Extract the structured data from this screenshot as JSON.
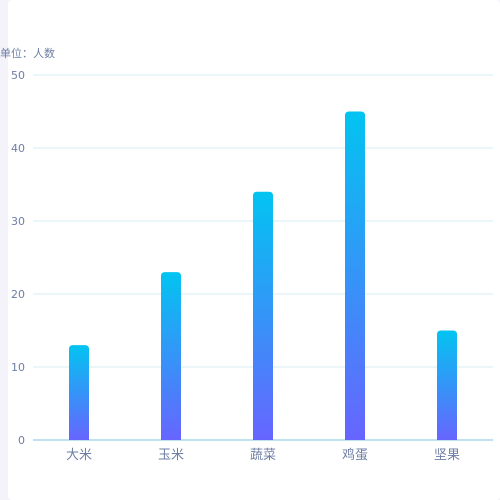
{
  "chart_data": {
    "type": "bar",
    "unit_label": "单位：人数",
    "categories": [
      "大米",
      "玉米",
      "蔬菜",
      "鸡蛋",
      "坚果"
    ],
    "values": [
      13,
      23,
      34,
      45,
      15
    ],
    "ylim": [
      0,
      50
    ],
    "yticks": [
      0,
      10,
      20,
      30,
      40,
      50
    ],
    "grid": true,
    "bar_gradient": {
      "top": "#02c4f1",
      "bottom": "#6765fe"
    },
    "grid_color": "#d4ecf3",
    "axis_color": "#7fc4dc",
    "label_color": "#6e7ea5"
  }
}
